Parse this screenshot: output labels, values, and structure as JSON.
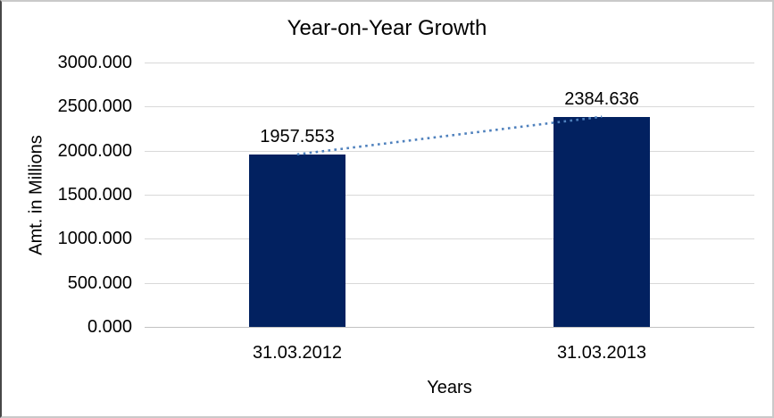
{
  "chart_data": {
    "type": "bar",
    "title": "Year-on-Year Growth",
    "xlabel": "Years",
    "ylabel": "Amt. in Millions",
    "categories": [
      "31.03.2012",
      "31.03.2013"
    ],
    "values": [
      1957.553,
      2384.636
    ],
    "data_labels": [
      "1957.553",
      "2384.636"
    ],
    "ylim": [
      0,
      3000
    ],
    "ytick_step": 500,
    "ytick_labels": [
      "3000.000",
      "2500.000",
      "2000.000",
      "1500.000",
      "1000.000",
      "500.000",
      "0.000"
    ],
    "grid": true,
    "legend": false,
    "trendline": {
      "type": "linear",
      "style": "dotted",
      "between": [
        "31.03.2012",
        "31.03.2013"
      ]
    }
  },
  "colors": {
    "bar": "#022160",
    "trendline": "#4F81BD",
    "gridline": "#D9D9D9",
    "axis_line": "#C3C3C3",
    "frame_border": "#C9C9C9",
    "text": "#000000",
    "background": "#FFFFFF"
  }
}
